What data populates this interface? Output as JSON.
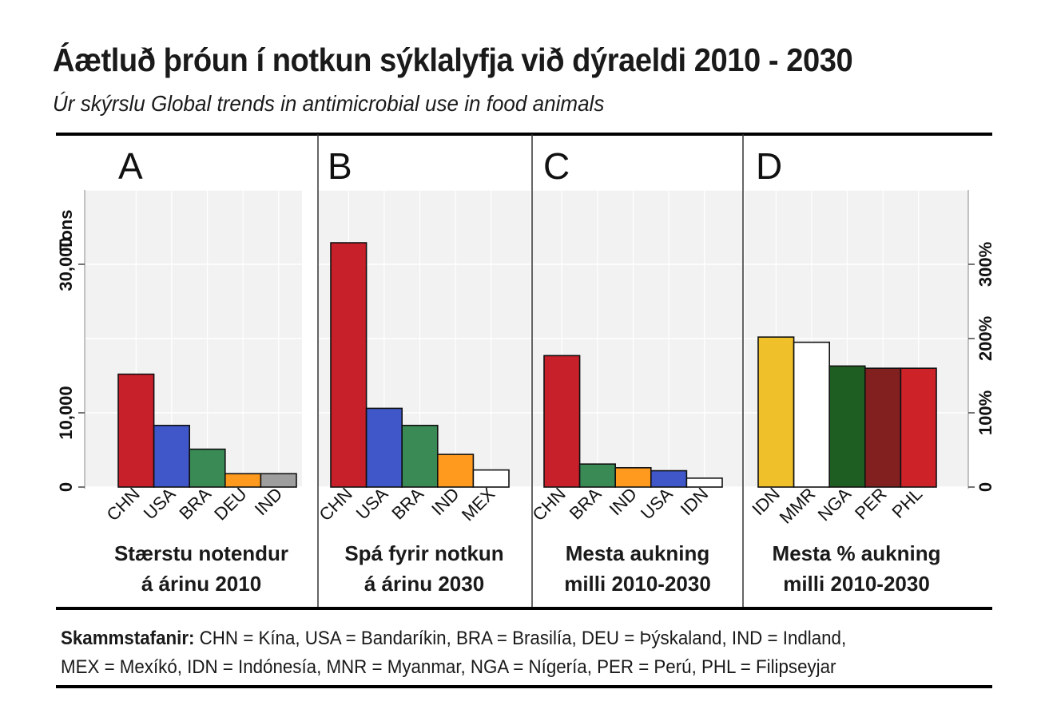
{
  "header": {
    "title": "Áætluð þróun í notkun sýklalyfja við dýraeldi 2010 - 2030",
    "subtitle": "Úr skýrslu Global trends in antimicrobial use in food animals"
  },
  "footnote": {
    "label": "Skammstafanir:",
    "line1": " CHN = Kína, USA = Bandaríkin, BRA = Brasilía,  DEU = Þýskaland, IND = Indland,",
    "line2": "MEX = Mexíkó, IDN = Indónesía, MNR = Myanmar, NGA = Nígería, PER = Perú, PHL = Filipseyjar"
  },
  "axes": {
    "left": {
      "label": "Tons",
      "ticks": [
        {
          "value": 0,
          "label": "0"
        },
        {
          "value": 10000,
          "label": "10,000"
        },
        {
          "value": 30000,
          "label": "30,000"
        }
      ],
      "range": [
        0,
        40000
      ]
    },
    "right": {
      "ticks": [
        {
          "value": 0,
          "label": "0"
        },
        {
          "value": 100,
          "label": "100%"
        },
        {
          "value": 200,
          "label": "200%"
        },
        {
          "value": 300,
          "label": "300%"
        }
      ],
      "range": [
        0,
        400
      ]
    }
  },
  "chart_data": [
    {
      "type": "bar",
      "panel": "A",
      "caption": [
        "Stærstu notendur",
        "á árinu 2010"
      ],
      "unit": "Tons",
      "categories": [
        "CHN",
        "USA",
        "BRA",
        "DEU",
        "IND"
      ],
      "values": [
        15200,
        8300,
        5100,
        1800,
        1800
      ],
      "colors": [
        "#c8202a",
        "#3f57c8",
        "#3a8a55",
        "#ff9a1e",
        "#9e9e9e"
      ],
      "ylim": [
        0,
        40000
      ]
    },
    {
      "type": "bar",
      "panel": "B",
      "caption": [
        "Spá fyrir notkun",
        "á árinu 2030"
      ],
      "unit": "Tons",
      "categories": [
        "CHN",
        "USA",
        "BRA",
        "IND",
        "MEX"
      ],
      "values": [
        32900,
        10600,
        8300,
        4400,
        2300
      ],
      "colors": [
        "#c8202a",
        "#3f57c8",
        "#3a8a55",
        "#ff9a1e",
        "#ffffff"
      ],
      "ylim": [
        0,
        40000
      ]
    },
    {
      "type": "bar",
      "panel": "C",
      "caption": [
        "Mesta aukning",
        "milli 2010-2030"
      ],
      "unit": "Tons",
      "categories": [
        "CHN",
        "BRA",
        "IND",
        "USA",
        "IDN"
      ],
      "values": [
        17700,
        3100,
        2600,
        2200,
        1200
      ],
      "colors": [
        "#c8202a",
        "#3a8a55",
        "#ff9a1e",
        "#3f57c8",
        "#ffffff"
      ],
      "ylim": [
        0,
        40000
      ]
    },
    {
      "type": "bar",
      "panel": "D",
      "caption": [
        "Mesta % aukning",
        "milli 2010-2030"
      ],
      "unit": "%",
      "categories": [
        "IDN",
        "MMR",
        "NGA",
        "PER",
        "PHL"
      ],
      "values": [
        202,
        195,
        163,
        160,
        160
      ],
      "colors": [
        "#f0c02a",
        "#ffffff",
        "#1f5e22",
        "#822020",
        "#cc2228"
      ],
      "ylim": [
        0,
        400
      ]
    }
  ]
}
